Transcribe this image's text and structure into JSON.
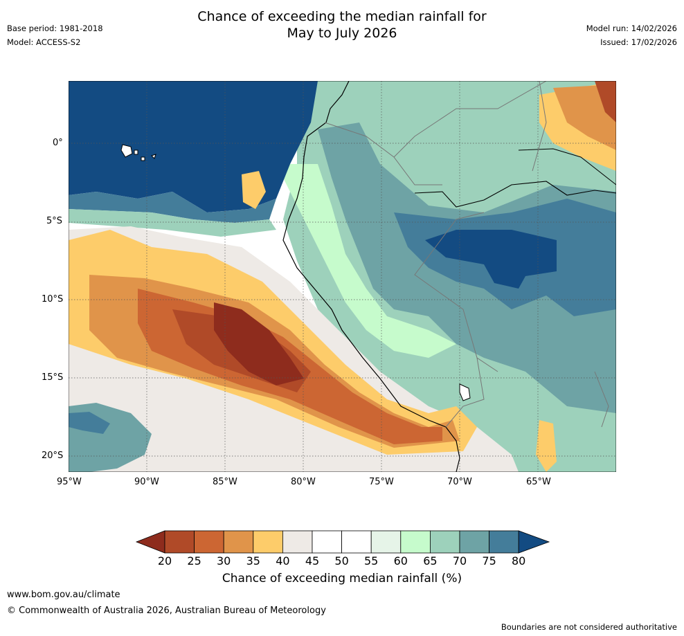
{
  "title_line1": "Chance of exceeding the median rainfall for",
  "title_line2": "May to July 2026",
  "meta": {
    "base_period": "Base period: 1981-2018",
    "model": "Model: ACCESS-S2",
    "model_run": "Model run: 14/02/2026",
    "issued": "Issued: 17/02/2026"
  },
  "axes": {
    "lat_labels": [
      "0°",
      "5°S",
      "10°S",
      "15°S",
      "20°S"
    ],
    "lon_labels": [
      "95°W",
      "90°W",
      "85°W",
      "80°W",
      "75°W",
      "70°W",
      "65°W"
    ]
  },
  "colorbar": {
    "ticks": [
      "20",
      "25",
      "30",
      "35",
      "40",
      "45",
      "50",
      "55",
      "60",
      "65",
      "70",
      "75",
      "80"
    ],
    "colors": [
      "#8e2c1d",
      "#b04a28",
      "#cc6633",
      "#e0944a",
      "#fdcc6a",
      "#eeeae6",
      "#ffffff",
      "#ffffff",
      "#e6f4e8",
      "#c6fbcc",
      "#9dd1bb",
      "#6ea3a5",
      "#447d9a",
      "#134b82"
    ],
    "label": "Chance of exceeding median rainfall (%)"
  },
  "footer": {
    "url": "www.bom.gov.au/climate",
    "copyright": "© Commonwealth of Australia 2026, Australian Bureau of Meteorology",
    "disclaimer": "Boundaries are not considered authoritative"
  }
}
